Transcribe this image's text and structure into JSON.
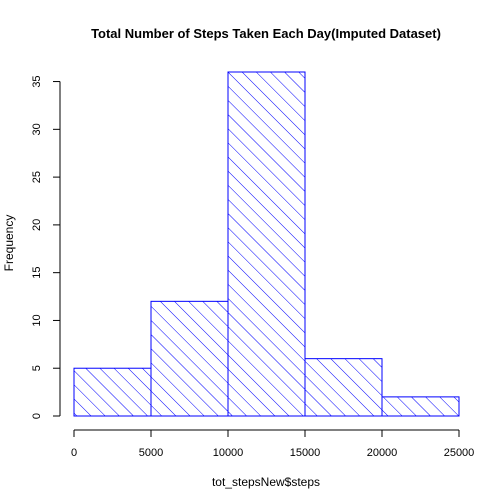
{
  "chart_data": {
    "type": "bar",
    "title": "Total Number of Steps Taken Each Day(Imputed Dataset)",
    "xlabel": "tot_stepsNew$steps",
    "ylabel": "Frequency",
    "bins": [
      {
        "start": 0,
        "end": 5000,
        "value": 5
      },
      {
        "start": 5000,
        "end": 10000,
        "value": 12
      },
      {
        "start": 10000,
        "end": 15000,
        "value": 36
      },
      {
        "start": 15000,
        "end": 20000,
        "value": 6
      },
      {
        "start": 20000,
        "end": 25000,
        "value": 2
      }
    ],
    "xlim": [
      0,
      25000
    ],
    "ylim": [
      0,
      36
    ],
    "xticks": [
      0,
      5000,
      10000,
      15000,
      20000,
      25000
    ],
    "yticks": [
      0,
      5,
      10,
      15,
      20,
      25,
      30,
      35
    ],
    "grid": false,
    "bar_color": "#0000ff",
    "fill_pattern": "diagonal-hatch"
  }
}
